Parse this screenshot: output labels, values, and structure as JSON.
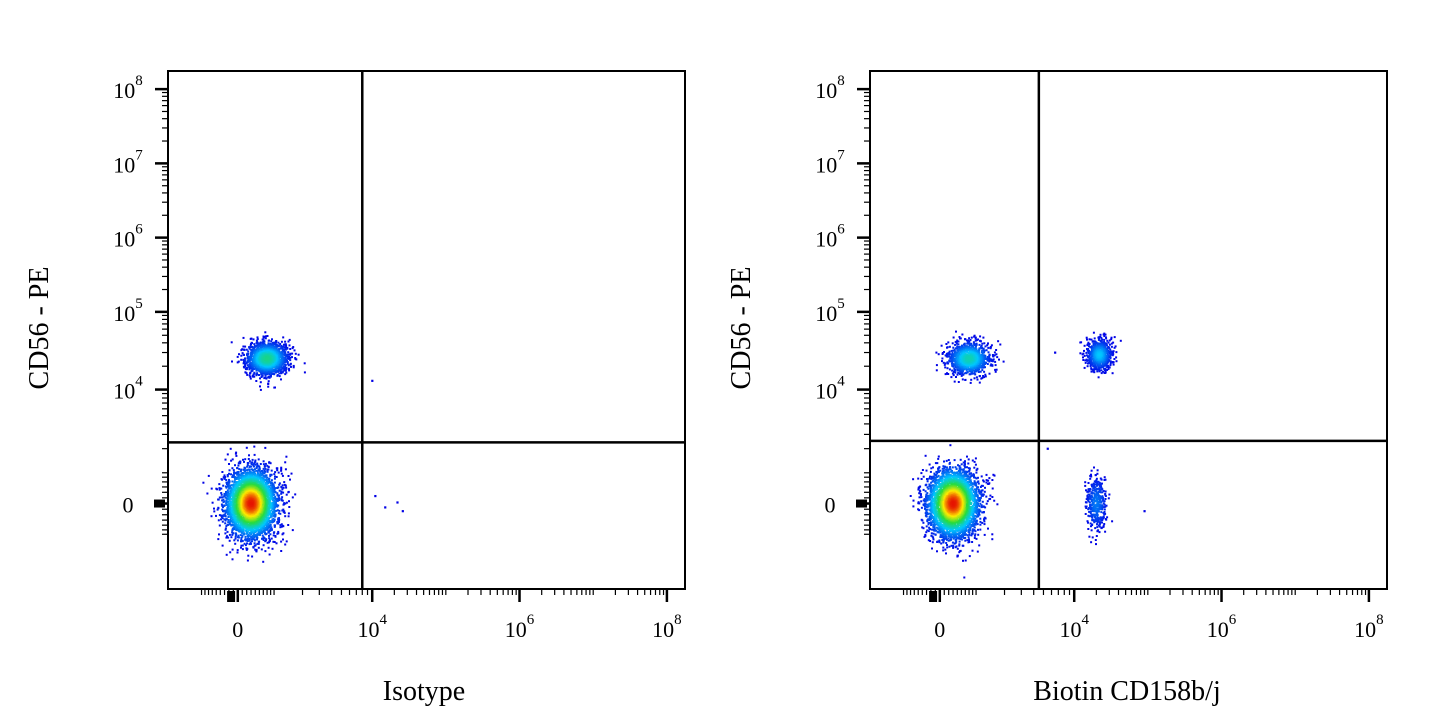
{
  "chart_data": [
    {
      "type": "scatter",
      "title": "",
      "xlabel": "Isotype",
      "ylabel": "CD56 - PE",
      "x_scale": "biexponential",
      "y_scale": "biexponential",
      "xlim": [
        -1000,
        100000000
      ],
      "ylim": [
        -1000,
        200000000
      ],
      "x_ticks": [
        {
          "value": 0,
          "base": "0",
          "exp": ""
        },
        {
          "value": 10000,
          "base": "10",
          "exp": "4"
        },
        {
          "value": 1000000,
          "base": "10",
          "exp": "6"
        },
        {
          "value": 100000000,
          "base": "10",
          "exp": "8"
        }
      ],
      "y_ticks": [
        {
          "value": 0,
          "base": "0",
          "exp": ""
        },
        {
          "value": 10000,
          "base": "10",
          "exp": "4"
        },
        {
          "value": 100000,
          "base": "10",
          "exp": "5"
        },
        {
          "value": 1000000,
          "base": "10",
          "exp": "6"
        },
        {
          "value": 10000000,
          "base": "10",
          "exp": "7"
        },
        {
          "value": 100000000,
          "base": "10",
          "exp": "8"
        }
      ],
      "gate": {
        "x": 8000,
        "y": 2400
      },
      "grid": false,
      "legend": "none",
      "colormap": "density: blue-cyan-green-yellow-red",
      "populations": [
        {
          "x_center": 300,
          "y_center": 0,
          "x_spread": 600,
          "y_spread": 900,
          "count": 4200,
          "abundance": 1.0
        },
        {
          "x_center": 700,
          "y_center": 25000,
          "x_spread": 600,
          "y_spread": 14000,
          "count": 1500,
          "abundance": 0.45
        }
      ],
      "scattered_events": [
        {
          "x": 11000,
          "y": 200
        },
        {
          "x": 15000,
          "y": -100
        },
        {
          "x": 22000,
          "y": 30
        },
        {
          "x": 26000,
          "y": -200
        },
        {
          "x": 10000,
          "y": 13000
        }
      ]
    },
    {
      "type": "scatter",
      "title": "",
      "xlabel": "Biotin CD158b/j",
      "ylabel": "CD56 - PE",
      "x_scale": "biexponential",
      "y_scale": "biexponential",
      "xlim": [
        -1000,
        100000000
      ],
      "ylim": [
        -1000,
        200000000
      ],
      "x_ticks": [
        {
          "value": 0,
          "base": "0",
          "exp": ""
        },
        {
          "value": 10000,
          "base": "10",
          "exp": "4"
        },
        {
          "value": 1000000,
          "base": "10",
          "exp": "6"
        },
        {
          "value": 100000000,
          "base": "10",
          "exp": "8"
        }
      ],
      "y_ticks": [
        {
          "value": 0,
          "base": "0",
          "exp": ""
        },
        {
          "value": 10000,
          "base": "10",
          "exp": "4"
        },
        {
          "value": 100000,
          "base": "10",
          "exp": "5"
        },
        {
          "value": 1000000,
          "base": "10",
          "exp": "6"
        },
        {
          "value": 10000000,
          "base": "10",
          "exp": "7"
        },
        {
          "value": 100000000,
          "base": "10",
          "exp": "8"
        }
      ],
      "gate": {
        "x": 4500,
        "y": 2500
      },
      "grid": false,
      "legend": "none",
      "colormap": "density: blue-cyan-green-yellow-red",
      "populations": [
        {
          "x_center": 300,
          "y_center": 0,
          "x_spread": 600,
          "y_spread": 900,
          "count": 3800,
          "abundance": 1.0
        },
        {
          "x_center": 700,
          "y_center": 25000,
          "x_spread": 600,
          "y_spread": 14000,
          "count": 1100,
          "abundance": 0.4
        },
        {
          "x_center": 22000,
          "y_center": 28000,
          "x_spread": 9000,
          "y_spread": 14000,
          "count": 750,
          "abundance": 0.3
        },
        {
          "x_center": 20000,
          "y_center": 0,
          "x_spread": 7000,
          "y_spread": 700,
          "count": 380,
          "abundance": 0.18
        }
      ],
      "scattered_events": [
        {
          "x": 90000,
          "y": -200
        },
        {
          "x": 6500,
          "y": 30000
        },
        {
          "x": 5500,
          "y": 2000
        }
      ]
    }
  ]
}
